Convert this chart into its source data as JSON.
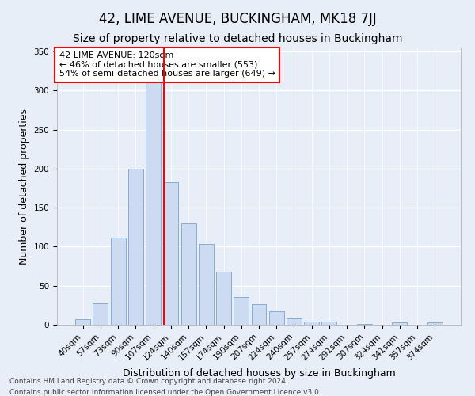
{
  "title": "42, LIME AVENUE, BUCKINGHAM, MK18 7JJ",
  "subtitle": "Size of property relative to detached houses in Buckingham",
  "xlabel": "Distribution of detached houses by size in Buckingham",
  "ylabel": "Number of detached properties",
  "bar_labels": [
    "40sqm",
    "57sqm",
    "73sqm",
    "90sqm",
    "107sqm",
    "124sqm",
    "140sqm",
    "157sqm",
    "174sqm",
    "190sqm",
    "207sqm",
    "224sqm",
    "240sqm",
    "257sqm",
    "274sqm",
    "291sqm",
    "307sqm",
    "324sqm",
    "341sqm",
    "357sqm",
    "374sqm"
  ],
  "bar_values": [
    7,
    27,
    112,
    200,
    320,
    183,
    130,
    103,
    68,
    35,
    26,
    17,
    8,
    4,
    4,
    0,
    1,
    0,
    3,
    0,
    3
  ],
  "bar_color": "#ccdaf2",
  "bar_edge_color": "#8aadd4",
  "annotation_text": "42 LIME AVENUE: 120sqm\n← 46% of detached houses are smaller (553)\n54% of semi-detached houses are larger (649) →",
  "annotation_box_color": "white",
  "annotation_box_edge_color": "red",
  "vline_x": 4.62,
  "vline_color": "red",
  "background_color": "#e8eef8",
  "grid_color": "white",
  "footer_line1": "Contains HM Land Registry data © Crown copyright and database right 2024.",
  "footer_line2": "Contains public sector information licensed under the Open Government Licence v3.0.",
  "ylim": [
    0,
    355
  ],
  "yticks": [
    0,
    50,
    100,
    150,
    200,
    250,
    300,
    350
  ],
  "title_fontsize": 12,
  "subtitle_fontsize": 10,
  "xlabel_fontsize": 9,
  "ylabel_fontsize": 9,
  "tick_fontsize": 7.5,
  "annotation_fontsize": 8,
  "footer_fontsize": 6.5
}
